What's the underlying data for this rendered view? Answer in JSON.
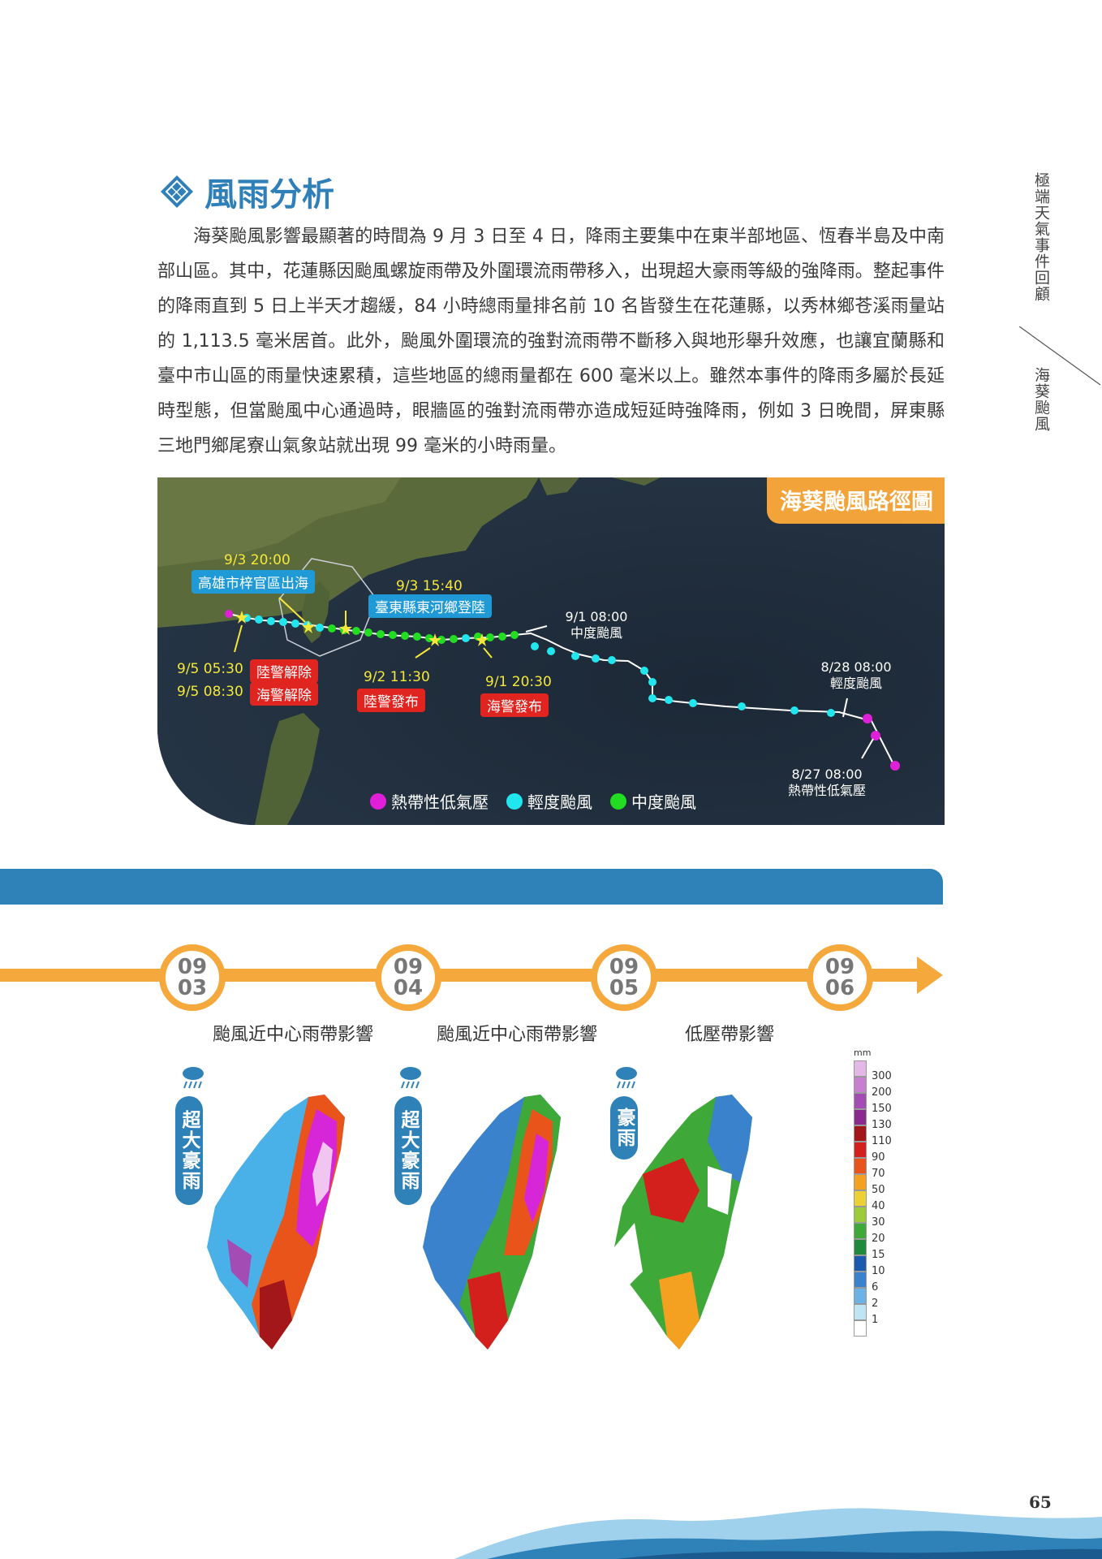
{
  "side_nav": {
    "section": "極端天氣事件回顧",
    "topic": "海葵颱風"
  },
  "heading": {
    "title": "風雨分析"
  },
  "body_text": "海葵颱風影響最顯著的時間為 9 月 3 日至 4 日，降雨主要集中在東半部地區、恆春半島及中南部山區。其中，花蓮縣因颱風螺旋雨帶及外圍環流雨帶移入，出現超大豪雨等級的強降雨。整起事件的降雨直到 5 日上半天才趨緩，84 小時總雨量排名前 10 名皆發生在花蓮縣，以秀林鄉苍溪雨量站的 1,113.5 毫米居首。此外，颱風外圍環流的強對流雨帶不斷移入與地形舉升效應，也讓宜蘭縣和臺中市山區的雨量快速累積，這些地區的總雨量都在 600 毫米以上。雖然本事件的降雨多屬於長延時型態，但當颱風中心通過時，眼牆區的強對流雨帶亦造成短延時強降雨，例如 3 日晚間，屏東縣三地門鄉尾寮山氣象站就出現 99 毫米的小時雨量。",
  "map": {
    "title": "海葵颱風路徑圖",
    "events": {
      "exit_time": "9/3 20:00",
      "exit_label": "高雄市梓官區出海",
      "landfall_time": "9/3 15:40",
      "landfall_label": "臺東縣東河鄉登陸",
      "mid_time": "9/1 08:00",
      "mid_label": "中度颱風",
      "mild_time": "8/28 08:00",
      "mild_label": "輕度颱風",
      "td_time": "8/27 08:00",
      "td_label": "熱帶性低氣壓",
      "land_lift_time": "9/5 05:30",
      "land_lift_label": "陸警解除",
      "sea_lift_time": "9/5 08:30",
      "sea_lift_label": "海警解除",
      "land_warn_time": "9/2 11:30",
      "land_warn_label": "陸警發布",
      "sea_warn_time": "9/1 20:30",
      "sea_warn_label": "海警發布"
    },
    "legend": [
      {
        "label": "熱帶性低氣壓",
        "color": "#e020d8"
      },
      {
        "label": "輕度颱風",
        "color": "#22e6ee"
      },
      {
        "label": "中度颱風",
        "color": "#22dd22"
      }
    ]
  },
  "timeline": {
    "dates": [
      {
        "m": "09",
        "d": "03"
      },
      {
        "m": "09",
        "d": "04"
      },
      {
        "m": "09",
        "d": "05"
      },
      {
        "m": "09",
        "d": "06"
      }
    ],
    "captions": [
      "颱風近中心雨帶影響",
      "颱風近中心雨帶影響",
      "低壓帶影響"
    ],
    "badges": [
      "超大豪雨",
      "超大豪雨",
      "豪雨"
    ]
  },
  "scale": {
    "unit": "mm",
    "levels": [
      "300",
      "200",
      "150",
      "130",
      "110",
      "90",
      "70",
      "50",
      "40",
      "30",
      "20",
      "15",
      "10",
      "6",
      "2",
      "1"
    ],
    "colors": [
      "#e4b8e6",
      "#c77fd0",
      "#a24cb4",
      "#8a2a8e",
      "#a3161a",
      "#d4201c",
      "#e8541a",
      "#f4a020",
      "#ecd034",
      "#9ccc38",
      "#3ea838",
      "#1e8a3a",
      "#1c5ab0",
      "#3a82cc",
      "#6bb2e6",
      "#bfe4f4",
      "#ffffff"
    ]
  },
  "page_number": "65",
  "colors": {
    "accent": "#2f7fb8",
    "orange": "#f5a93c"
  }
}
